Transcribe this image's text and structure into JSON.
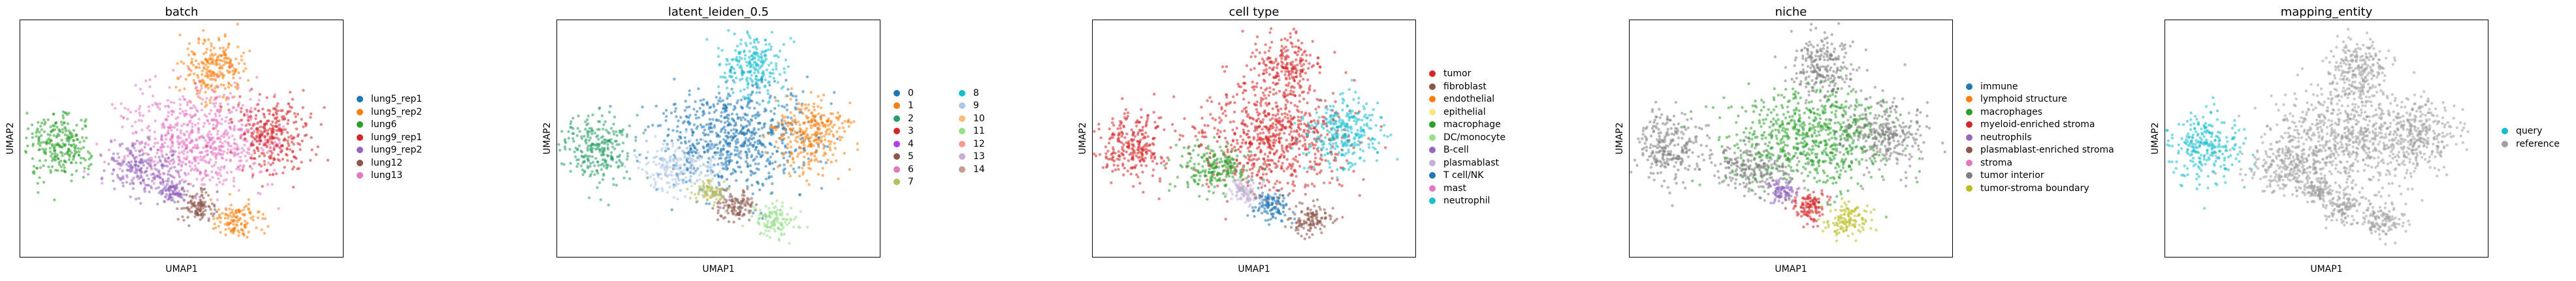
{
  "chart_data": [
    {
      "type": "scatter",
      "title": "batch",
      "xlabel": "UMAP1",
      "ylabel": "UMAP2",
      "legend_position": "right",
      "legend_columns": 1,
      "series": [
        {
          "name": "lung5_rep1",
          "color": "#1f77b4"
        },
        {
          "name": "lung5_rep2",
          "color": "#ff7f0e"
        },
        {
          "name": "lung6",
          "color": "#2ca02c"
        },
        {
          "name": "lung9_rep1",
          "color": "#d62728"
        },
        {
          "name": "lung9_rep2",
          "color": "#9467bd"
        },
        {
          "name": "lung12",
          "color": "#8c564b"
        },
        {
          "name": "lung13",
          "color": "#e377c2"
        }
      ]
    },
    {
      "type": "scatter",
      "title": "latent_leiden_0.5",
      "xlabel": "UMAP1",
      "ylabel": "UMAP2",
      "legend_position": "right",
      "legend_columns": 2,
      "series": [
        {
          "name": "0",
          "color": "#1f77b4"
        },
        {
          "name": "1",
          "color": "#ff7f0e"
        },
        {
          "name": "2",
          "color": "#279e68"
        },
        {
          "name": "3",
          "color": "#d62728"
        },
        {
          "name": "4",
          "color": "#aa40fc"
        },
        {
          "name": "5",
          "color": "#8c564b"
        },
        {
          "name": "6",
          "color": "#e377c2"
        },
        {
          "name": "7",
          "color": "#b5bd61"
        },
        {
          "name": "8",
          "color": "#17becf"
        },
        {
          "name": "9",
          "color": "#aec7e8"
        },
        {
          "name": "10",
          "color": "#ffbb78"
        },
        {
          "name": "11",
          "color": "#98df8a"
        },
        {
          "name": "12",
          "color": "#ff9896"
        },
        {
          "name": "13",
          "color": "#c5b0d5"
        },
        {
          "name": "14",
          "color": "#c49c94"
        }
      ]
    },
    {
      "type": "scatter",
      "title": "cell type",
      "xlabel": "UMAP1",
      "ylabel": "UMAP2",
      "legend_position": "right",
      "legend_columns": 1,
      "series": [
        {
          "name": "tumor",
          "color": "#d62728"
        },
        {
          "name": "fibroblast",
          "color": "#8c564b"
        },
        {
          "name": "endothelial",
          "color": "#ff7f0e"
        },
        {
          "name": "epithelial",
          "color": "#ffe680"
        },
        {
          "name": "macrophage",
          "color": "#2ca02c"
        },
        {
          "name": "DC/monocyte",
          "color": "#98df8a"
        },
        {
          "name": "B-cell",
          "color": "#9467bd"
        },
        {
          "name": "plasmablast",
          "color": "#c5b0d5"
        },
        {
          "name": "T cell/NK",
          "color": "#1f77b4"
        },
        {
          "name": "mast",
          "color": "#e377c2"
        },
        {
          "name": "neutrophil",
          "color": "#17becf"
        }
      ]
    },
    {
      "type": "scatter",
      "title": "niche",
      "xlabel": "UMAP1",
      "ylabel": "UMAP2",
      "legend_position": "right",
      "legend_columns": 1,
      "series": [
        {
          "name": "immune",
          "color": "#1f77b4"
        },
        {
          "name": "lymphoid structure",
          "color": "#ff7f0e"
        },
        {
          "name": "macrophages",
          "color": "#2ca02c"
        },
        {
          "name": "myeloid-enriched stroma",
          "color": "#d62728"
        },
        {
          "name": "neutrophils",
          "color": "#9467bd"
        },
        {
          "name": "plasmablast-enriched stroma",
          "color": "#8c564b"
        },
        {
          "name": "stroma",
          "color": "#e377c2"
        },
        {
          "name": "tumor interior",
          "color": "#7f7f7f"
        },
        {
          "name": "tumor-stroma boundary",
          "color": "#bcbd22"
        }
      ]
    },
    {
      "type": "scatter",
      "title": "mapping_entity",
      "xlabel": "UMAP1",
      "ylabel": "UMAP2",
      "legend_position": "right",
      "legend_columns": 1,
      "series": [
        {
          "name": "query",
          "color": "#17becf"
        },
        {
          "name": "reference",
          "color": "#a0a0a0"
        }
      ]
    }
  ]
}
